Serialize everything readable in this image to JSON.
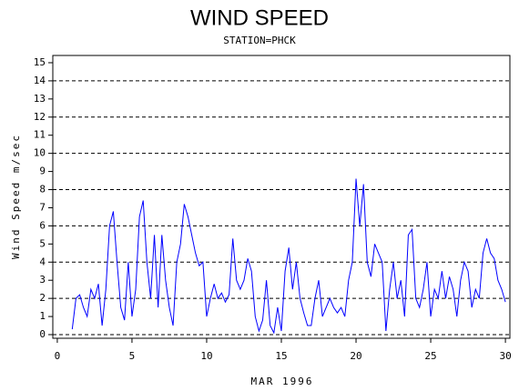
{
  "chart_data": {
    "type": "line",
    "title": "WIND SPEED",
    "subtitle": "STATION=PHCK",
    "x_label": "MAR 1996",
    "y_label": "Wind Speed m/sec",
    "color": "#0000ff",
    "xlim": [
      -0.3,
      30.3
    ],
    "xticks": [
      0,
      5,
      10,
      15,
      20,
      25,
      30
    ],
    "ylim": [
      -0.2,
      15.4
    ],
    "yticks": [
      0,
      1,
      2,
      3,
      4,
      5,
      6,
      7,
      8,
      9,
      10,
      11,
      12,
      13,
      14,
      15
    ],
    "gridlines": [
      0,
      2,
      4,
      6,
      8,
      10,
      12,
      14
    ],
    "x": [
      1.0,
      1.25,
      1.5,
      1.75,
      2.0,
      2.25,
      2.5,
      2.75,
      3.0,
      3.25,
      3.5,
      3.75,
      4.0,
      4.25,
      4.5,
      4.75,
      5.0,
      5.25,
      5.5,
      5.75,
      6.0,
      6.25,
      6.5,
      6.75,
      7.0,
      7.25,
      7.5,
      7.75,
      8.0,
      8.25,
      8.5,
      8.75,
      9.0,
      9.25,
      9.5,
      9.75,
      10.0,
      10.25,
      10.5,
      10.75,
      11.0,
      11.25,
      11.5,
      11.75,
      12.0,
      12.25,
      12.5,
      12.75,
      13.0,
      13.25,
      13.5,
      13.75,
      14.0,
      14.25,
      14.5,
      14.75,
      15.0,
      15.25,
      15.5,
      15.75,
      16.0,
      16.25,
      16.5,
      16.75,
      17.0,
      17.25,
      17.5,
      17.75,
      18.0,
      18.25,
      18.5,
      18.75,
      19.0,
      19.25,
      19.5,
      19.75,
      20.0,
      20.25,
      20.5,
      20.75,
      21.0,
      21.25,
      21.5,
      21.75,
      22.0,
      22.25,
      22.5,
      22.75,
      23.0,
      23.25,
      23.5,
      23.75,
      24.0,
      24.25,
      24.5,
      24.75,
      25.0,
      25.25,
      25.5,
      25.75,
      26.0,
      26.25,
      26.5,
      26.75,
      27.0,
      27.25,
      27.5,
      27.75,
      28.0,
      28.25,
      28.5,
      28.75,
      29.0,
      29.25,
      29.5,
      29.75,
      30.0
    ],
    "values": [
      0.3,
      2.0,
      2.2,
      1.5,
      1.0,
      2.5,
      2.0,
      2.8,
      0.5,
      2.5,
      6.0,
      6.8,
      4.0,
      1.5,
      0.8,
      4.0,
      1.0,
      2.5,
      6.5,
      7.4,
      4.0,
      2.0,
      5.5,
      1.5,
      5.5,
      3.0,
      1.5,
      0.5,
      4.0,
      5.0,
      7.2,
      6.5,
      5.5,
      4.5,
      3.8,
      4.0,
      1.0,
      2.0,
      2.8,
      2.0,
      2.3,
      1.8,
      2.2,
      5.3,
      3.0,
      2.5,
      3.0,
      4.2,
      3.5,
      1.0,
      0.2,
      0.8,
      3.0,
      0.5,
      0.1,
      1.5,
      0.2,
      3.5,
      4.8,
      2.5,
      4.0,
      2.0,
      1.2,
      0.5,
      0.5,
      2.0,
      3.0,
      1.0,
      1.5,
      2.0,
      1.5,
      1.2,
      1.5,
      1.0,
      3.0,
      4.0,
      8.6,
      6.0,
      8.3,
      4.0,
      3.2,
      5.0,
      4.5,
      4.0,
      0.2,
      2.5,
      4.0,
      2.0,
      3.0,
      1.0,
      5.5,
      5.8,
      2.0,
      1.5,
      2.5,
      4.0,
      1.0,
      2.5,
      2.0,
      3.5,
      2.0,
      3.2,
      2.5,
      1.0,
      3.0,
      4.0,
      3.5,
      1.5,
      2.5,
      2.0,
      4.5,
      5.3,
      4.5,
      4.2,
      3.0,
      2.5,
      1.8
    ]
  }
}
